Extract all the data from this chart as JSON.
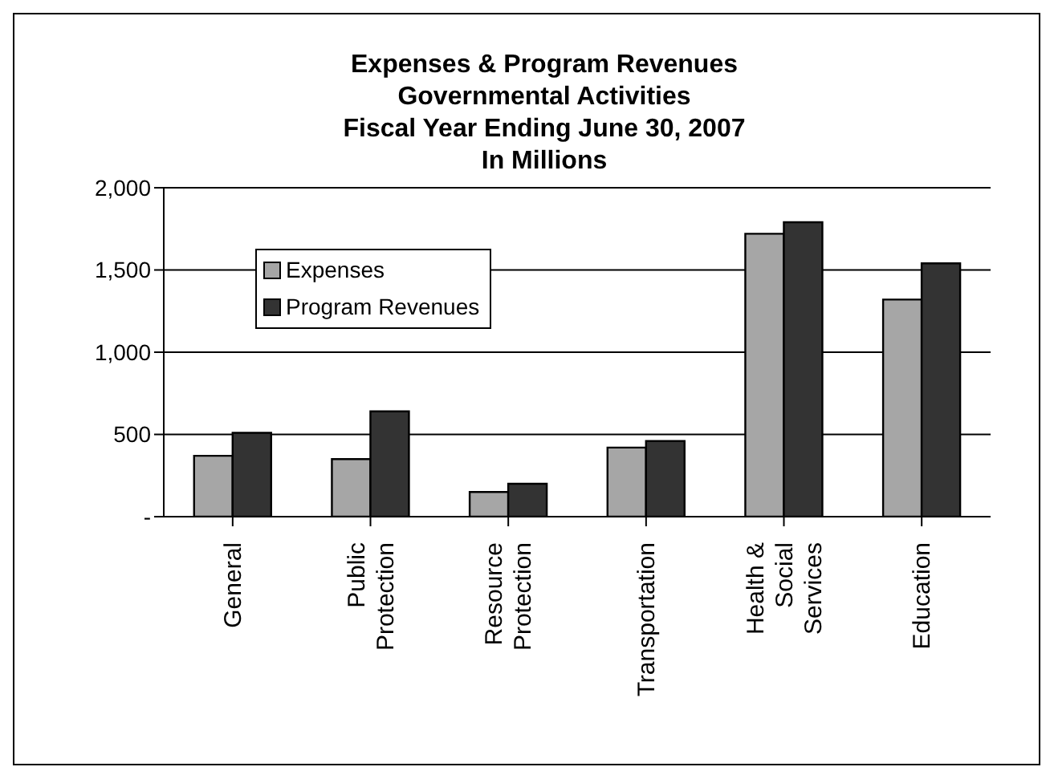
{
  "chart_data": {
    "type": "bar",
    "title": "Expenses & Program Revenues",
    "subtitle": "Governmental Activities\nFiscal Year Ending June 30, 2007\nIn Millions",
    "categories": [
      "General",
      "Public Protection",
      "Resource Protection",
      "Transportation",
      "Health & Social Services",
      "Education"
    ],
    "series": [
      {
        "name": "Expenses",
        "color": "#a6a6a6",
        "values": [
          370,
          350,
          150,
          420,
          1720,
          1320
        ]
      },
      {
        "name": "Program Revenues",
        "color": "#333333",
        "values": [
          510,
          640,
          200,
          460,
          1790,
          1540
        ]
      }
    ],
    "ylim": [
      0,
      2000
    ],
    "yticks": [
      {
        "value": 0,
        "label": "-"
      },
      {
        "value": 500,
        "label": "500"
      },
      {
        "value": 1000,
        "label": "1,000"
      },
      {
        "value": 1500,
        "label": "1,500"
      },
      {
        "value": 2000,
        "label": "2,000"
      }
    ],
    "grid": "y",
    "legend": "top left"
  }
}
